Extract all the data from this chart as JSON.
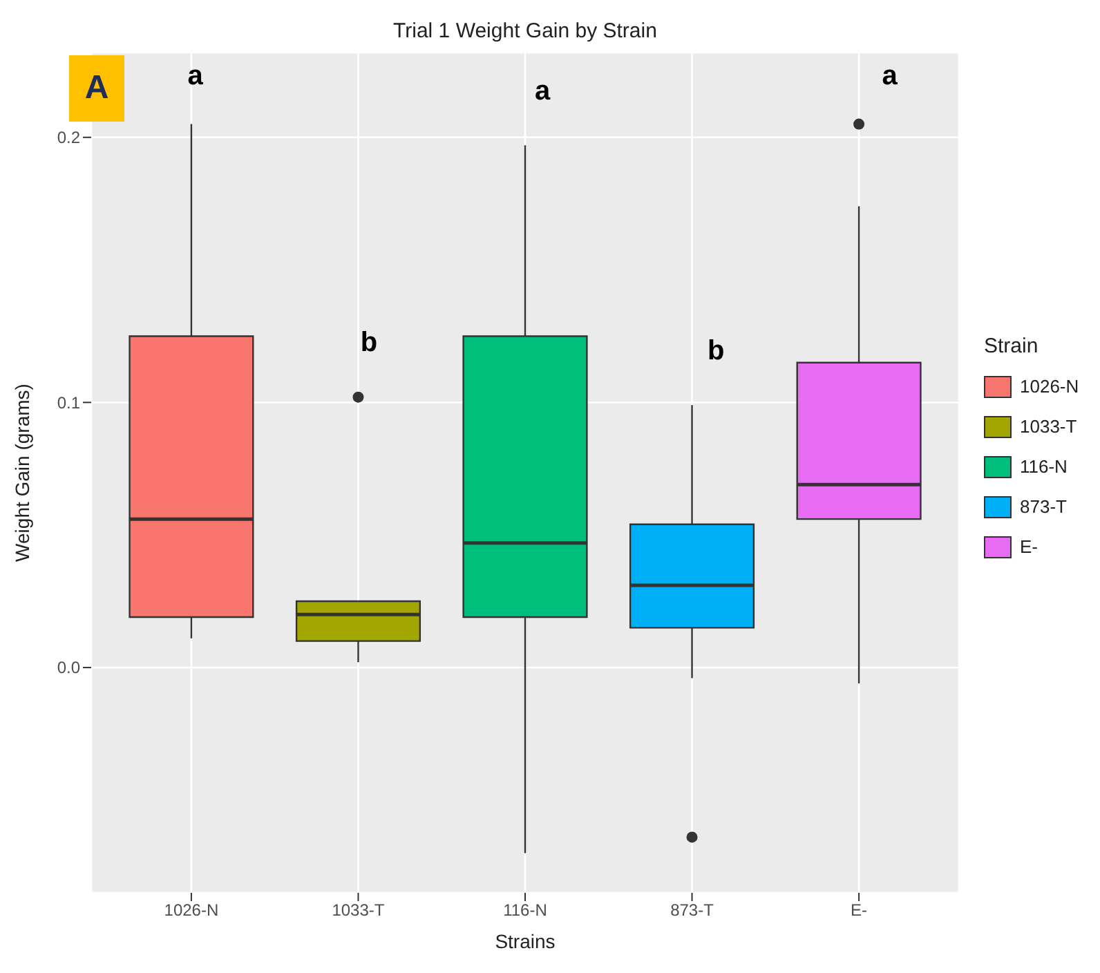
{
  "chart_data": {
    "type": "box",
    "title": "Trial 1 Weight Gain by Strain",
    "xlabel": "Strains",
    "ylabel": "Weight Gain (grams)",
    "legend_title": "Strain",
    "legend": "right",
    "grid": true,
    "categories": [
      "1026-N",
      "1033-T",
      "116-N",
      "873-T",
      "E-"
    ],
    "series": [
      {
        "name": "1026-N",
        "color": "#f8766d",
        "boxes": [
          {
            "low": 0.011,
            "q1": 0.019,
            "median": 0.056,
            "q3": 0.125,
            "high": 0.205
          },
          null,
          null,
          null,
          null
        ]
      },
      {
        "name": "1033-T",
        "color": "#a3a500",
        "boxes": [
          null,
          {
            "low": 0.002,
            "q1": 0.01,
            "median": 0.02,
            "q3": 0.025,
            "high": 0.025,
            "outliers": [
              0.102
            ]
          },
          null,
          null,
          null
        ]
      },
      {
        "name": "116-N",
        "color": "#00bf7d",
        "boxes": [
          null,
          null,
          {
            "low": -0.07,
            "q1": 0.019,
            "median": 0.047,
            "q3": 0.125,
            "high": 0.197
          },
          null,
          null
        ]
      },
      {
        "name": "873-T",
        "color": "#00b0f6",
        "boxes": [
          null,
          null,
          null,
          {
            "low": -0.004,
            "q1": 0.015,
            "median": 0.031,
            "q3": 0.054,
            "high": 0.099,
            "outliers": [
              -0.064
            ]
          },
          null
        ]
      },
      {
        "name": "E-",
        "color": "#e76bf3",
        "boxes": [
          null,
          null,
          null,
          null,
          {
            "low": -0.006,
            "q1": 0.056,
            "median": 0.069,
            "q3": 0.115,
            "high": 0.174,
            "outliers": [
              0.205
            ]
          }
        ]
      }
    ],
    "ylim": [
      -0.085,
      0.232
    ],
    "yticks": [
      {
        "value": 0,
        "label": "0.0"
      },
      {
        "value": 0.1,
        "label": "0.1"
      },
      {
        "value": 0.2,
        "label": "0.2"
      }
    ],
    "annotations": [
      "A",
      "a",
      "b",
      "a",
      "b",
      "a"
    ]
  }
}
